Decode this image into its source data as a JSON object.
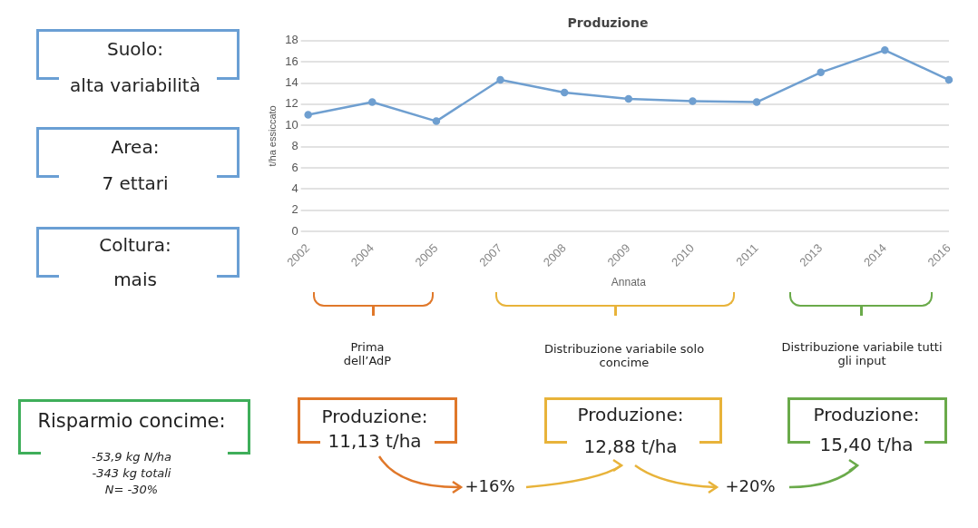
{
  "chart_data": {
    "type": "line",
    "title": "Produzione",
    "xlabel": "Annata",
    "ylabel": "t/ha essiccato",
    "categories": [
      "2002",
      "2004",
      "2005",
      "2007",
      "2008",
      "2009",
      "2010",
      "2011",
      "2013",
      "2014",
      "2016"
    ],
    "series": [
      {
        "color": "#6f9fd0",
        "values": [
          11.0,
          12.2,
          10.4,
          14.3,
          13.1,
          12.5,
          12.3,
          12.2,
          15.0,
          17.1,
          14.3
        ]
      }
    ],
    "ylim": [
      0,
      18
    ],
    "yticks": [
      0,
      2,
      4,
      6,
      8,
      10,
      12,
      14,
      16,
      18
    ],
    "grid": "y",
    "legend": false,
    "marker": "circle",
    "line_style": "solid",
    "annotations": [
      "Suolo:",
      "alta variabilità",
      "Area:",
      "7 ettari",
      "Coltura:",
      "mais",
      "Prima dell’AdP",
      "Distribuzione variabile solo concime",
      "Distribuzione variabile tutti gli input",
      "Risparmio concime:",
      "-53,9 kg N/ha",
      "-343 kg totali",
      "N= -30%",
      "Produzione:",
      "11,13 t/ha",
      "Produzione:",
      "12,88 t/ha",
      "Produzione:",
      "15,40 t/ha",
      "+16%",
      "+20%"
    ]
  }
}
